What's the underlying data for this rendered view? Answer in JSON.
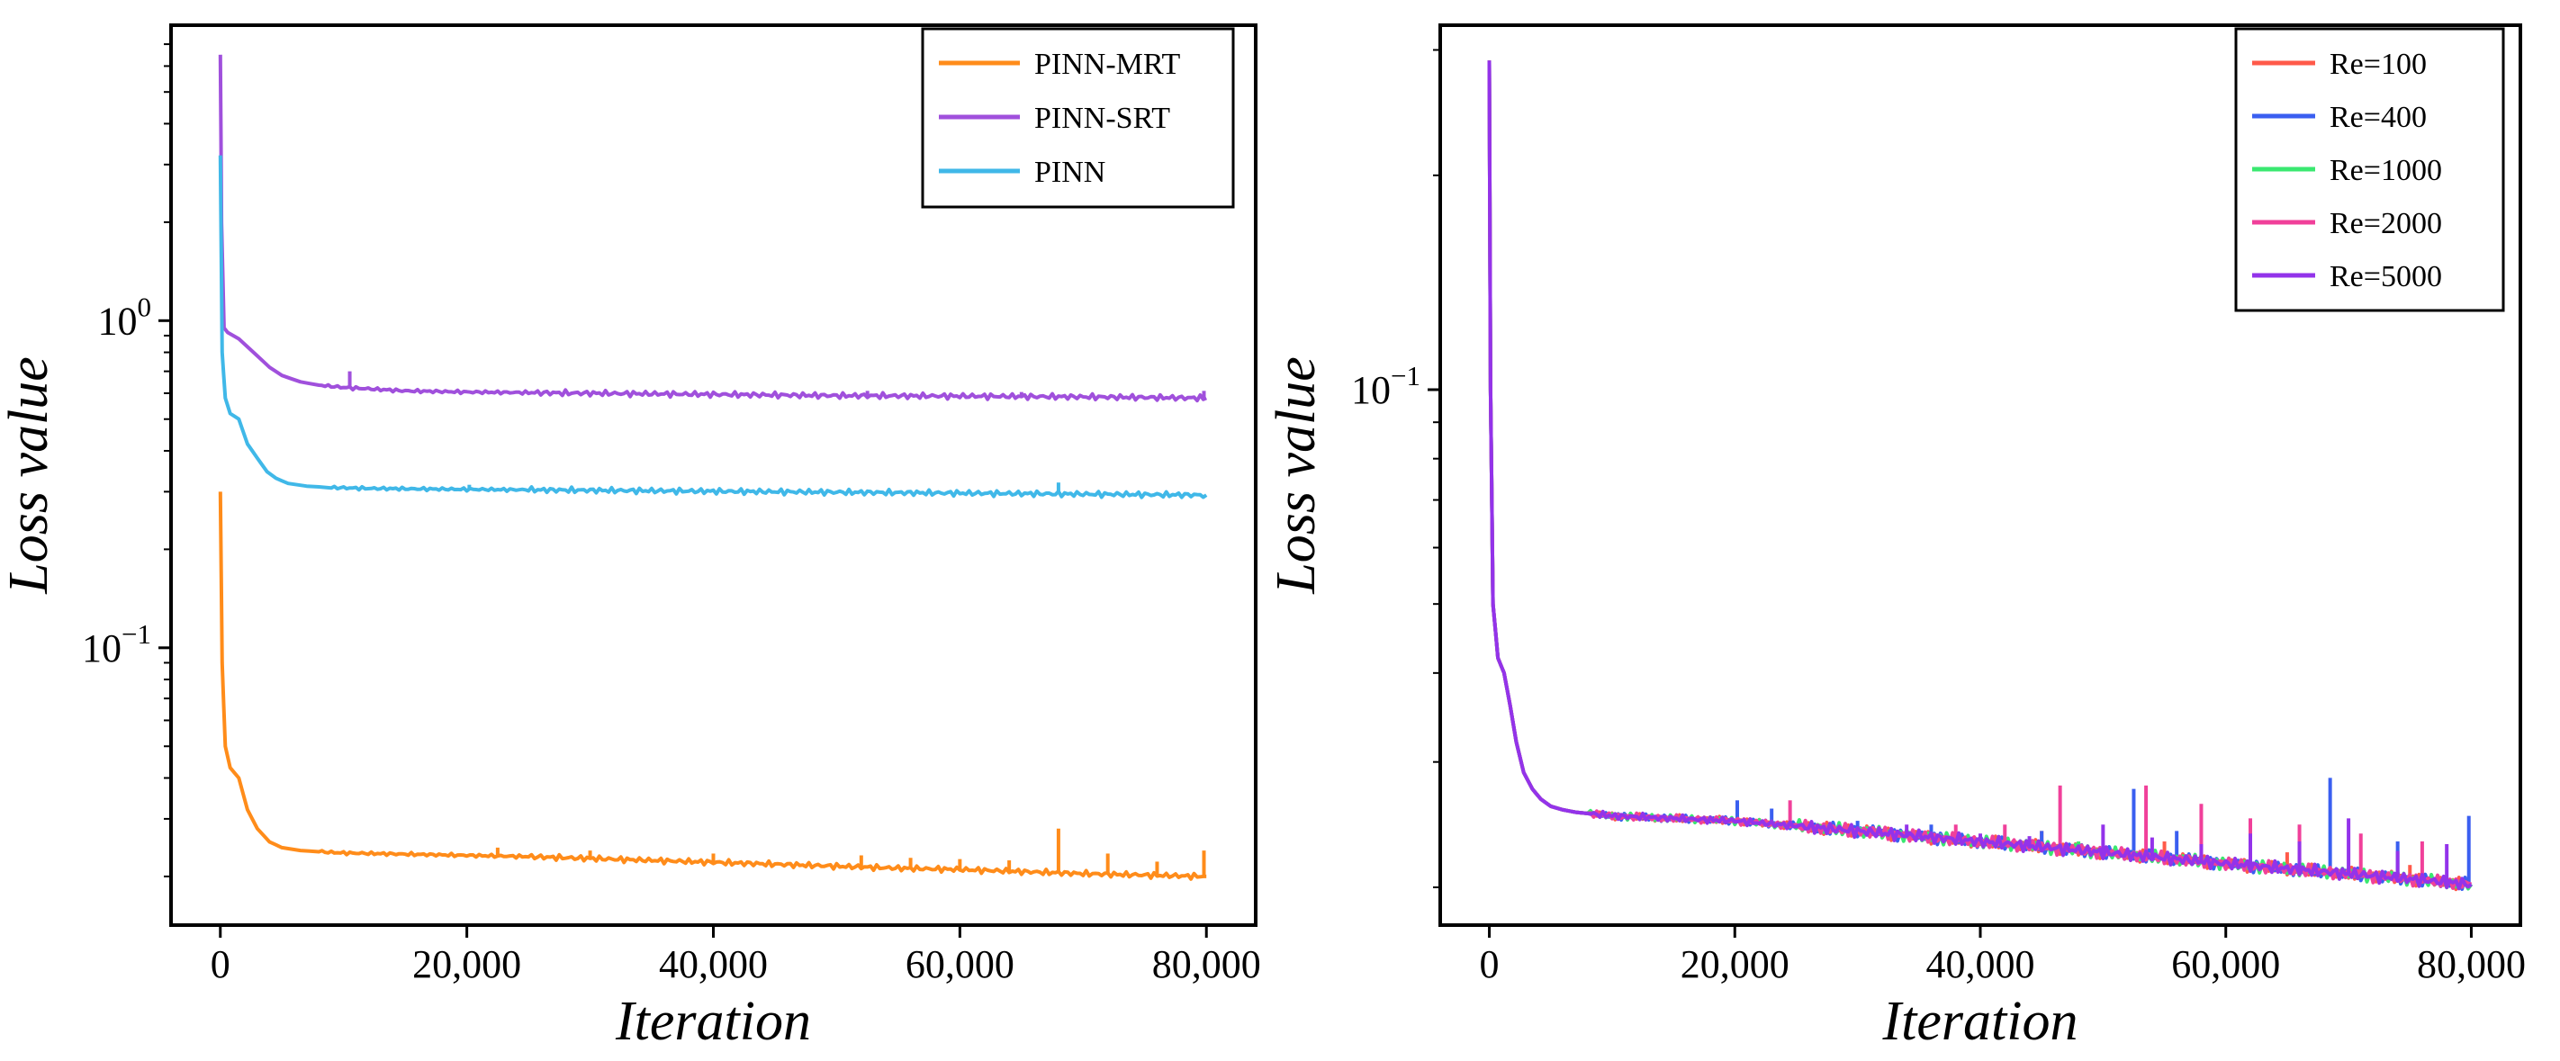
{
  "chart_data": [
    {
      "type": "line",
      "yscale": "log",
      "xlabel": "Iteration",
      "ylabel": "Loss value",
      "xlim": [
        -4000,
        84000
      ],
      "ylim": [
        0.0142,
        8.0
      ],
      "xticks": [
        0,
        20000,
        40000,
        60000,
        80000
      ],
      "xtick_labels": [
        "0",
        "20,000",
        "40,000",
        "60,000",
        "80,000"
      ],
      "yticks": [
        1.0,
        0.1
      ],
      "ytick_labels": [
        "10^0",
        "10^-1"
      ],
      "legend_position": "top-right",
      "series": [
        {
          "name": "PINN-MRT",
          "color": "#ff8c1a",
          "x": [
            0,
            150,
            400,
            800,
            1500,
            2200,
            3000,
            4000,
            5000,
            6500,
            8000,
            10000,
            15000,
            20000,
            25000,
            30000,
            35000,
            40000,
            45000,
            50000,
            55000,
            60000,
            65000,
            70000,
            75000,
            80000
          ],
          "y": [
            0.3,
            0.09,
            0.05,
            0.043,
            0.04,
            0.032,
            0.028,
            0.0255,
            0.0245,
            0.024,
            0.0238,
            0.0236,
            0.0234,
            0.0232,
            0.023,
            0.0227,
            0.0224,
            0.0221,
            0.0218,
            0.0215,
            0.0212,
            0.021,
            0.0207,
            0.0204,
            0.0202,
            0.02
          ],
          "spikes": [
            [
              22500,
              0.0245
            ],
            [
              30000,
              0.024
            ],
            [
              40000,
              0.0235
            ],
            [
              52000,
              0.0232
            ],
            [
              56000,
              0.0228
            ],
            [
              60000,
              0.0226
            ],
            [
              64000,
              0.0224
            ],
            [
              68000,
              0.028
            ],
            [
              72000,
              0.0235
            ],
            [
              76000,
              0.0222
            ],
            [
              79800,
              0.024
            ]
          ]
        },
        {
          "name": "PINN-SRT",
          "color": "#a050dc",
          "x": [
            0,
            100,
            300,
            600,
            1500,
            3000,
            4000,
            5000,
            6500,
            8000,
            10000,
            15000,
            20000,
            30000,
            40000,
            50000,
            60000,
            70000,
            80000
          ],
          "y": [
            6.5,
            2.0,
            0.95,
            0.92,
            0.88,
            0.78,
            0.72,
            0.68,
            0.65,
            0.635,
            0.625,
            0.61,
            0.605,
            0.6,
            0.595,
            0.59,
            0.588,
            0.585,
            0.58
          ],
          "spikes": [
            [
              10500,
              0.7
            ],
            [
              52500,
              0.61
            ],
            [
              65000,
              0.605
            ],
            [
              79800,
              0.61
            ]
          ]
        },
        {
          "name": "PINN",
          "color": "#40b8e8",
          "x": [
            0,
            150,
            400,
            800,
            1500,
            2200,
            3000,
            3800,
            4500,
            5500,
            7000,
            9000,
            12000,
            20000,
            30000,
            40000,
            50000,
            60000,
            70000,
            80000
          ],
          "y": [
            3.2,
            0.8,
            0.58,
            0.52,
            0.5,
            0.42,
            0.38,
            0.345,
            0.33,
            0.318,
            0.312,
            0.309,
            0.307,
            0.305,
            0.303,
            0.301,
            0.299,
            0.297,
            0.295,
            0.293
          ],
          "spikes": [
            [
              20200,
              0.315
            ],
            [
              68000,
              0.32
            ]
          ]
        }
      ]
    },
    {
      "type": "line",
      "yscale": "log",
      "xlabel": "Iteration",
      "ylabel": "Loss value",
      "xlim": [
        -4000,
        84000
      ],
      "ylim": [
        0.0177,
        0.325
      ],
      "xticks": [
        0,
        20000,
        40000,
        60000,
        80000
      ],
      "xtick_labels": [
        "0",
        "20,000",
        "40,000",
        "60,000",
        "80,000"
      ],
      "yticks": [
        0.1
      ],
      "ytick_labels": [
        "10^-1"
      ],
      "legend_position": "top-right",
      "series": [
        {
          "name": "Re=100",
          "color": "#ff5a4a",
          "x": [
            0,
            100,
            300,
            700,
            1200,
            1700,
            2200,
            2800,
            3500,
            4200,
            5000,
            6000,
            7000,
            8000,
            10000,
            15000,
            20000,
            25000,
            30000,
            40000,
            50000,
            60000,
            70000,
            80000
          ],
          "y": [
            0.29,
            0.1,
            0.05,
            0.042,
            0.04,
            0.036,
            0.032,
            0.029,
            0.0275,
            0.0266,
            0.026,
            0.0257,
            0.0255,
            0.0254,
            0.0252,
            0.025,
            0.0248,
            0.0244,
            0.024,
            0.0232,
            0.0224,
            0.0216,
            0.0209,
            0.0202
          ],
          "spikes": [
            [
              45000,
              0.024
            ],
            [
              55000,
              0.0232
            ],
            [
              65000,
              0.0224
            ],
            [
              75000,
              0.0215
            ]
          ]
        },
        {
          "name": "Re=400",
          "color": "#3a5ff0",
          "x": [
            0,
            100,
            300,
            700,
            1200,
            1700,
            2200,
            2800,
            3500,
            4200,
            5000,
            6000,
            7000,
            8000,
            10000,
            15000,
            20000,
            25000,
            30000,
            40000,
            50000,
            60000,
            70000,
            80000
          ],
          "y": [
            0.29,
            0.1,
            0.05,
            0.042,
            0.04,
            0.036,
            0.032,
            0.029,
            0.0275,
            0.0266,
            0.026,
            0.0257,
            0.0255,
            0.0254,
            0.0252,
            0.025,
            0.0248,
            0.0244,
            0.024,
            0.0232,
            0.0224,
            0.0216,
            0.0209,
            0.0202
          ],
          "spikes": [
            [
              20200,
              0.0265
            ],
            [
              23000,
              0.0258
            ],
            [
              30000,
              0.0248
            ],
            [
              36000,
              0.0245
            ],
            [
              45000,
              0.024
            ],
            [
              52500,
              0.0275
            ],
            [
              56000,
              0.024
            ],
            [
              62000,
              0.024
            ],
            [
              68500,
              0.0285
            ],
            [
              74000,
              0.0232
            ],
            [
              79800,
              0.0252
            ]
          ]
        },
        {
          "name": "Re=1000",
          "color": "#3ae870",
          "x": [
            0,
            100,
            300,
            700,
            1200,
            1700,
            2200,
            2800,
            3500,
            4200,
            5000,
            6000,
            7000,
            8000,
            10000,
            15000,
            20000,
            25000,
            30000,
            40000,
            50000,
            60000,
            70000,
            80000
          ],
          "y": [
            0.29,
            0.1,
            0.05,
            0.042,
            0.04,
            0.036,
            0.032,
            0.029,
            0.0275,
            0.0266,
            0.026,
            0.0257,
            0.0255,
            0.0254,
            0.0252,
            0.025,
            0.0248,
            0.0244,
            0.024,
            0.0232,
            0.0224,
            0.0216,
            0.0209,
            0.0202
          ],
          "spikes": [
            [
              48000,
              0.0232
            ],
            [
              66000,
              0.022
            ]
          ]
        },
        {
          "name": "Re=2000",
          "color": "#f0409a",
          "x": [
            0,
            100,
            300,
            700,
            1200,
            1700,
            2200,
            2800,
            3500,
            4200,
            5000,
            6000,
            7000,
            8000,
            10000,
            15000,
            20000,
            25000,
            30000,
            40000,
            50000,
            60000,
            70000,
            80000
          ],
          "y": [
            0.29,
            0.1,
            0.05,
            0.042,
            0.04,
            0.036,
            0.032,
            0.029,
            0.0275,
            0.0266,
            0.026,
            0.0257,
            0.0255,
            0.0254,
            0.0252,
            0.025,
            0.0248,
            0.0244,
            0.024,
            0.0232,
            0.0224,
            0.0216,
            0.0209,
            0.0202
          ],
          "spikes": [
            [
              24500,
              0.0265
            ],
            [
              38000,
              0.0245
            ],
            [
              42000,
              0.0245
            ],
            [
              46500,
              0.0278
            ],
            [
              53500,
              0.0278
            ],
            [
              58000,
              0.0262
            ],
            [
              62000,
              0.025
            ],
            [
              66000,
              0.0245
            ],
            [
              71000,
              0.0238
            ],
            [
              76000,
              0.0232
            ]
          ]
        },
        {
          "name": "Re=5000",
          "color": "#9333ea",
          "x": [
            0,
            100,
            300,
            700,
            1200,
            1700,
            2200,
            2800,
            3500,
            4200,
            5000,
            6000,
            7000,
            8000,
            10000,
            15000,
            20000,
            25000,
            30000,
            40000,
            50000,
            60000,
            70000,
            80000
          ],
          "y": [
            0.29,
            0.1,
            0.05,
            0.042,
            0.04,
            0.036,
            0.032,
            0.029,
            0.0275,
            0.0266,
            0.026,
            0.0257,
            0.0255,
            0.0254,
            0.0252,
            0.025,
            0.0248,
            0.0244,
            0.024,
            0.0232,
            0.0224,
            0.0216,
            0.0209,
            0.0202
          ],
          "spikes": [
            [
              34000,
              0.0245
            ],
            [
              40000,
              0.0238
            ],
            [
              44000,
              0.0236
            ],
            [
              50000,
              0.0245
            ],
            [
              54000,
              0.0235
            ],
            [
              58000,
              0.023
            ],
            [
              62000,
              0.0238
            ],
            [
              66000,
              0.0232
            ],
            [
              70000,
              0.025
            ],
            [
              74000,
              0.0225
            ],
            [
              78000,
              0.023
            ]
          ]
        }
      ]
    }
  ]
}
